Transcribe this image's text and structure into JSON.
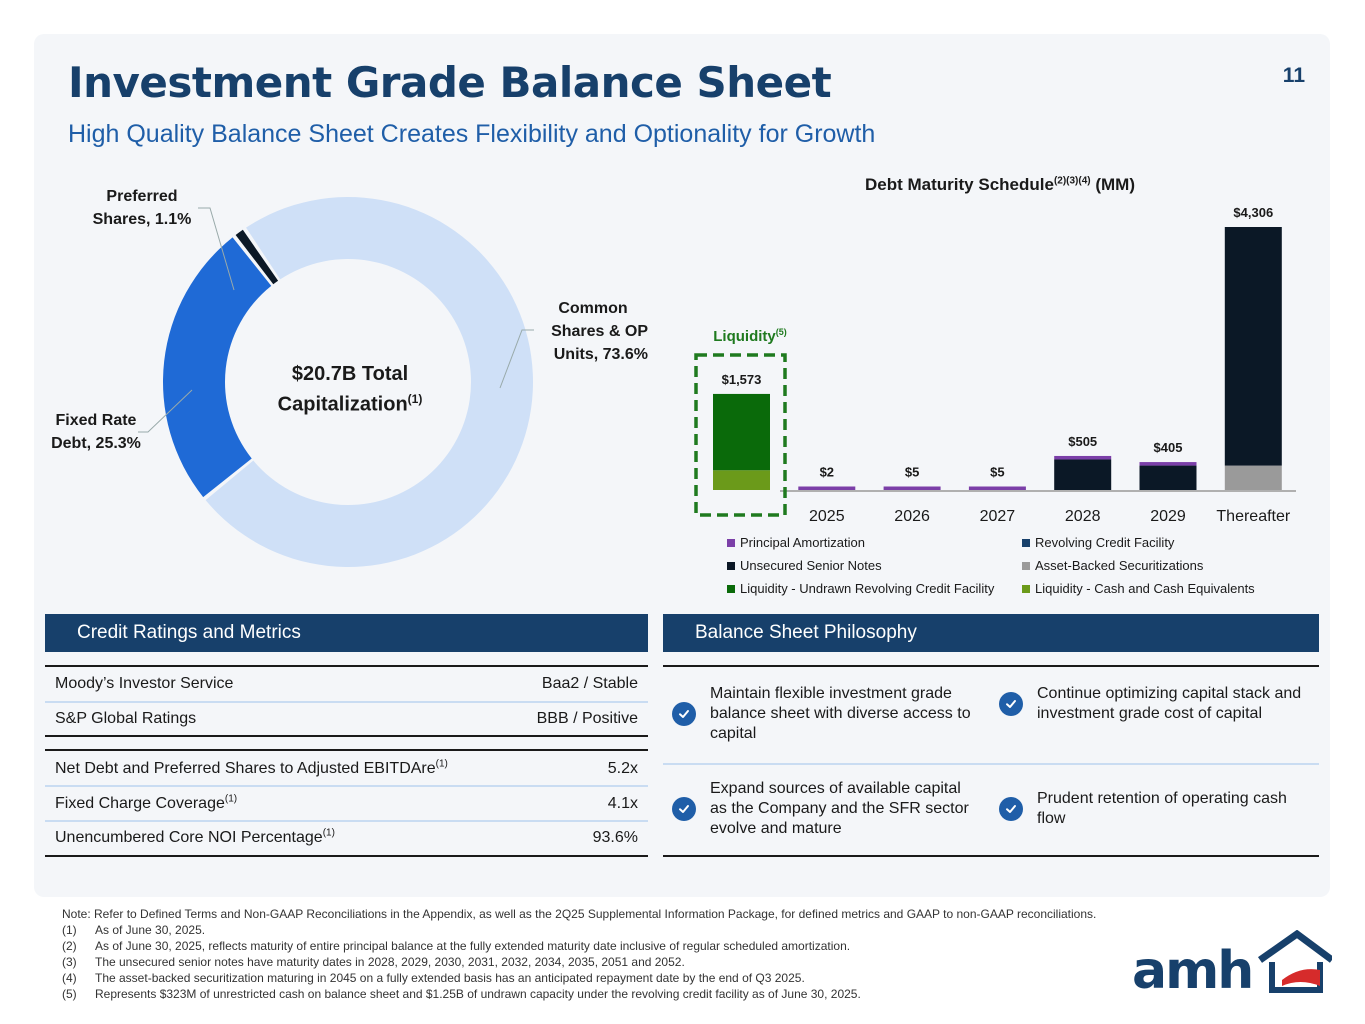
{
  "page": {
    "title": "Investment Grade Balance Sheet",
    "subtitle": "High Quality Balance Sheet Creates Flexibility and Optionality for Growth",
    "page_number": "11"
  },
  "donut": {
    "center_main": "$20.7B Total",
    "center_second": "Capitalization",
    "center_sup": "(1)",
    "labels": {
      "preferred_1": "Preferred",
      "preferred_2": "Shares, 1.1%",
      "common_1": "Common",
      "common_2": "Shares & OP",
      "common_3": "Units, 73.6%",
      "fixed_1": "Fixed Rate",
      "fixed_2": "Debt, 25.3%"
    }
  },
  "maturity": {
    "title_main": "Debt Maturity Schedule",
    "title_sup": "(2)(3)(4)",
    "title_unit": " (MM)",
    "liquidity_label": "Liquidity",
    "liquidity_sup": "(5)",
    "legend": [
      {
        "label": "Principal Amortization",
        "color": "#7b3fa8"
      },
      {
        "label": "Revolving Credit Facility",
        "color": "#17406b"
      },
      {
        "label": "Unsecured Senior Notes",
        "color": "#0b1826"
      },
      {
        "label": "Asset-Backed Securitizations",
        "color": "#9a9a9a"
      },
      {
        "label": "Liquidity - Undrawn Revolving Credit Facility",
        "color": "#0a6a0a"
      },
      {
        "label": "Liquidity - Cash and Cash Equivalents",
        "color": "#6b9a1a"
      }
    ]
  },
  "chart_data": {
    "type": "bar",
    "stacked": true,
    "title": "Debt Maturity Schedule(2)(3)(4) (MM)",
    "categories": [
      "Liquidity",
      "2025",
      "2026",
      "2027",
      "2028",
      "2029",
      "Thereafter"
    ],
    "totals": [
      "$1,573",
      "$2",
      "$5",
      "$5",
      "$505",
      "$405",
      "$4,306"
    ],
    "series": [
      {
        "name": "Liquidity - Cash and Cash Equivalents",
        "color": "#6b9a1a",
        "values": [
          323,
          0,
          0,
          0,
          0,
          0,
          0
        ]
      },
      {
        "name": "Liquidity - Undrawn Revolving Credit Facility",
        "color": "#0a6a0a",
        "values": [
          1250,
          0,
          0,
          0,
          0,
          0,
          0
        ]
      },
      {
        "name": "Asset-Backed Securitizations",
        "color": "#9a9a9a",
        "values": [
          0,
          0,
          0,
          0,
          0,
          0,
          400
        ]
      },
      {
        "name": "Unsecured Senior Notes",
        "color": "#0b1826",
        "values": [
          0,
          0,
          0,
          0,
          500,
          400,
          3906
        ]
      },
      {
        "name": "Revolving Credit Facility",
        "color": "#17406b",
        "values": [
          0,
          0,
          0,
          0,
          0,
          0,
          0
        ]
      },
      {
        "name": "Principal Amortization",
        "color": "#7b3fa8",
        "values": [
          0,
          2,
          5,
          5,
          5,
          5,
          0
        ]
      }
    ],
    "legend_position": "bottom",
    "grid": false
  },
  "donut_data": {
    "type": "pie",
    "slices": [
      {
        "name": "Common Shares & OP Units",
        "value": 73.6,
        "color": "#cfe0f7"
      },
      {
        "name": "Fixed Rate Debt",
        "value": 25.3,
        "color": "#1f6ad6"
      },
      {
        "name": "Preferred Shares",
        "value": 1.1,
        "color": "#0b1826"
      }
    ]
  },
  "credit": {
    "header": "Credit Ratings and Metrics",
    "ratings": [
      {
        "label": "Moody’s Investor Service",
        "value": "Baa2 / Stable"
      },
      {
        "label": "S&P Global Ratings",
        "value": "BBB / Positive"
      }
    ],
    "metrics": [
      {
        "label": "Net Debt and Preferred Shares to Adjusted EBITDAre",
        "sup": "(1)",
        "value": "5.2x"
      },
      {
        "label": "Fixed Charge Coverage",
        "sup": "(1)",
        "value": "4.1x"
      },
      {
        "label": "Unencumbered Core NOI Percentage",
        "sup": "(1)",
        "value": "93.6%"
      }
    ]
  },
  "philosophy": {
    "header": "Balance Sheet Philosophy",
    "items": [
      "Maintain flexible investment grade balance sheet with diverse access to capital",
      "Continue optimizing capital stack and investment grade cost of capital",
      "Expand sources of available capital as the Company and the SFR sector evolve and mature",
      "Prudent retention of operating cash flow"
    ]
  },
  "notes": {
    "lead": "Note: Refer to Defined Terms and Non-GAAP Reconciliations in the Appendix, as well as the 2Q25 Supplemental Information Package, for defined metrics and GAAP to non-GAAP reconciliations.",
    "items": [
      {
        "n": "(1)",
        "text": "As of June 30, 2025."
      },
      {
        "n": "(2)",
        "text": "As of June 30, 2025, reflects maturity of entire principal balance at the fully extended maturity date inclusive of regular scheduled amortization."
      },
      {
        "n": "(3)",
        "text": "The unsecured senior notes have maturity dates in 2028, 2029, 2030, 2031, 2032, 2034, 2035, 2051 and 2052."
      },
      {
        "n": "(4)",
        "text": "The asset-backed securitization maturing in 2045 on a fully extended basis has an anticipated repayment date by the end of Q3 2025."
      },
      {
        "n": "(5)",
        "text": "Represents $323M of unrestricted cash on balance sheet and $1.25B of undrawn capacity under the revolving credit facility as of June 30, 2025."
      }
    ]
  },
  "logo": {
    "text": "amh"
  }
}
